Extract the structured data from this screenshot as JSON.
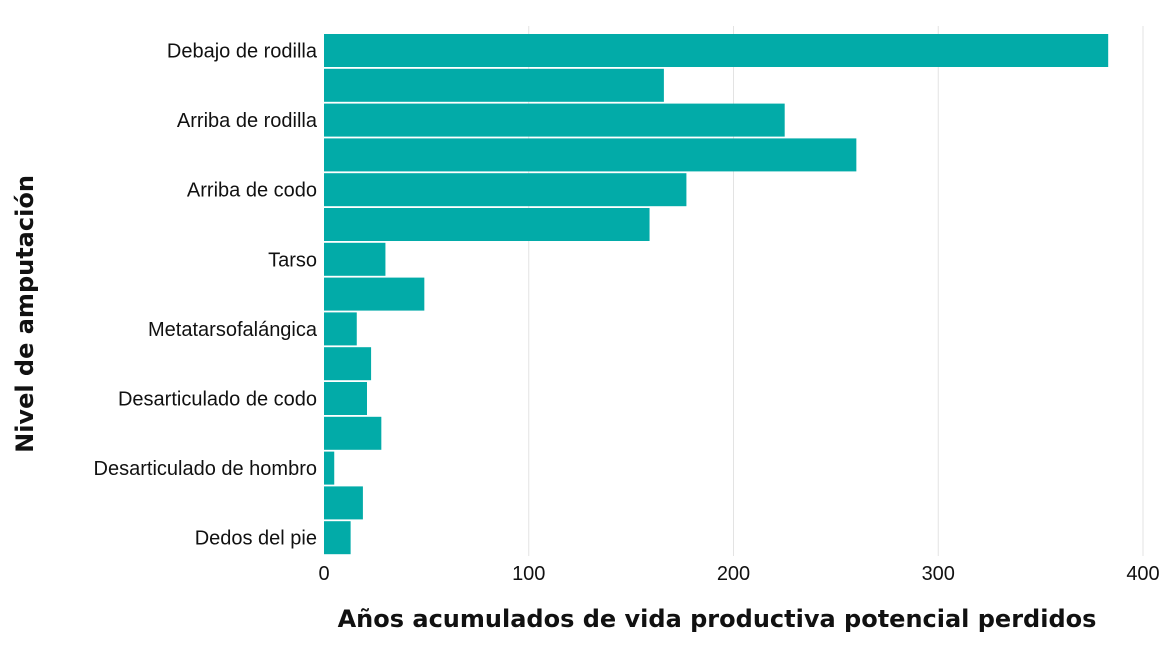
{
  "chart_data": {
    "type": "bar",
    "orientation": "horizontal",
    "title": "",
    "xlabel": "Años acumulados de vida productiva potencial perdidos",
    "ylabel": "Nivel de amputación",
    "xlim": [
      0,
      400
    ],
    "xticks": [
      "0",
      "100",
      "200",
      "300",
      "400"
    ],
    "grid": true,
    "bar_color": "#02ABA8",
    "labeled_categories": [
      "Debajo de rodilla",
      "Arriba de rodilla",
      "Arriba de codo",
      "Tarso",
      "Metatarsofalángica",
      "Desarticulado de codo",
      "Desarticulado de hombro",
      "Dedos del pie"
    ],
    "values": [
      383,
      166,
      225,
      260,
      177,
      159,
      30,
      49,
      16,
      23,
      21,
      28,
      5,
      19,
      13
    ]
  }
}
